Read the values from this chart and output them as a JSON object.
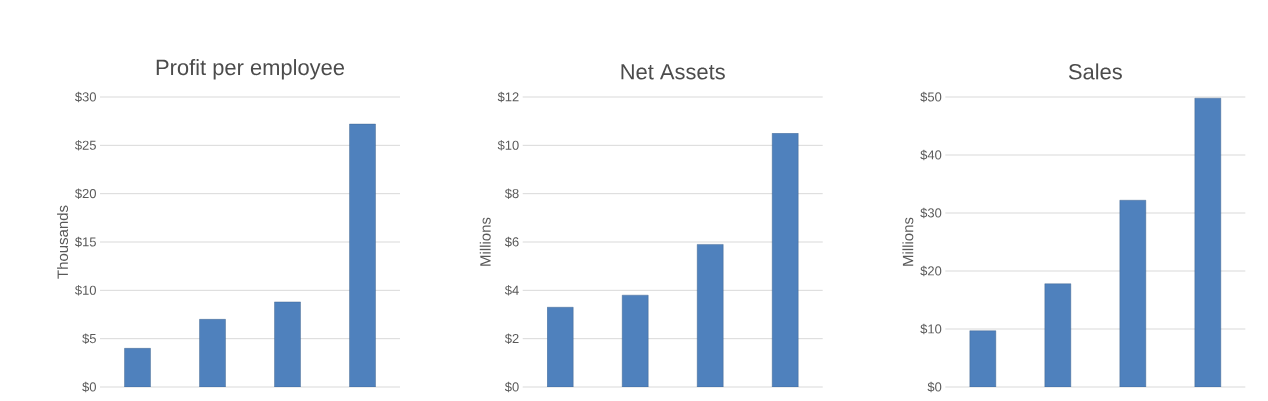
{
  "chart_data": [
    {
      "type": "bar",
      "title": "Profit per employee",
      "ylabel": "Thousands",
      "categories": [
        null,
        null,
        null,
        null
      ],
      "values": [
        4,
        7,
        8.8,
        27.2
      ],
      "color": "#4f81bd",
      "ylim": [
        0,
        30
      ],
      "yticks": [
        {
          "value": 0,
          "label": "$0"
        },
        {
          "value": 5,
          "label": "$5"
        },
        {
          "value": 10,
          "label": "$10"
        },
        {
          "value": 15,
          "label": "$15"
        },
        {
          "value": 20,
          "label": "$20"
        },
        {
          "value": 25,
          "label": "$25"
        },
        {
          "value": 30,
          "label": "$30"
        }
      ],
      "grid": "y",
      "tick_labels": "y"
    },
    {
      "type": "bar",
      "title": "Net Assets",
      "ylabel": "Millions",
      "categories": [
        null,
        null,
        null,
        null
      ],
      "values": [
        3.3,
        3.8,
        5.9,
        10.5
      ],
      "color": "#4f81bd",
      "ylim": [
        0,
        12
      ],
      "yticks": [
        {
          "value": 0,
          "label": "$0"
        },
        {
          "value": 2,
          "label": "$2"
        },
        {
          "value": 4,
          "label": "$4"
        },
        {
          "value": 6,
          "label": "$6"
        },
        {
          "value": 8,
          "label": "$8"
        },
        {
          "value": 10,
          "label": "$10"
        },
        {
          "value": 12,
          "label": "$12"
        }
      ],
      "grid": "y",
      "tick_labels": "y"
    },
    {
      "type": "bar",
      "title": "Sales",
      "ylabel": "Millions",
      "categories": [
        null,
        null,
        null,
        null
      ],
      "values": [
        9.7,
        17.8,
        32.2,
        49.8
      ],
      "color": "#4f81bd",
      "ylim": [
        0,
        50
      ],
      "yticks": [
        {
          "value": 0,
          "label": "$0"
        },
        {
          "value": 10,
          "label": "$10"
        },
        {
          "value": 20,
          "label": "$20"
        },
        {
          "value": 30,
          "label": "$30"
        },
        {
          "value": 40,
          "label": "$40"
        },
        {
          "value": 50,
          "label": "$50"
        }
      ],
      "grid": "y",
      "tick_labels": "y"
    }
  ]
}
